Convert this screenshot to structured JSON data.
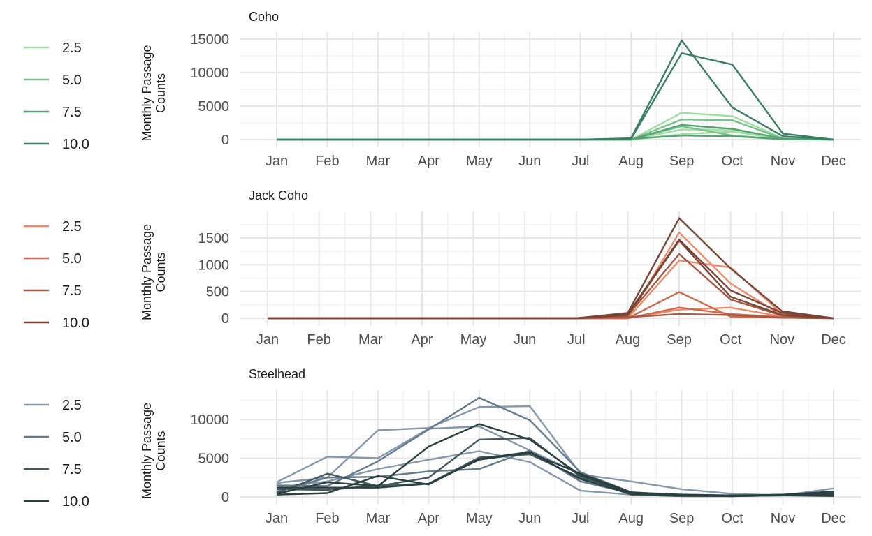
{
  "chart_data": [
    {
      "type": "line",
      "title": "Coho",
      "ylabel": "Monthly Passage Counts",
      "xlabel": "",
      "categories": [
        "Jan",
        "Feb",
        "Mar",
        "Apr",
        "May",
        "Jun",
        "Jul",
        "Aug",
        "Sep",
        "Oct",
        "Nov",
        "Dec"
      ],
      "ylim": [
        0,
        15000
      ],
      "yticks": [
        0,
        5000,
        10000,
        15000
      ],
      "grid": true,
      "legend": {
        "placement": "left",
        "entries": [
          {
            "label": "2.5",
            "color": "#9ddf9f"
          },
          {
            "label": "5.0",
            "color": "#77c28a"
          },
          {
            "label": "7.5",
            "color": "#56a274"
          },
          {
            "label": "10.0",
            "color": "#3a7e63"
          }
        ]
      },
      "series": [
        {
          "color": "#9ddf9f",
          "values": [
            0,
            0,
            0,
            0,
            0,
            0,
            0,
            0,
            4000,
            3500,
            200,
            0
          ]
        },
        {
          "color": "#9ddf9f",
          "values": [
            0,
            0,
            0,
            0,
            0,
            0,
            0,
            0,
            1500,
            1500,
            100,
            0
          ]
        },
        {
          "color": "#9ddf9f",
          "values": [
            0,
            0,
            0,
            0,
            0,
            0,
            0,
            0,
            800,
            1200,
            100,
            0
          ]
        },
        {
          "color": "#77c28a",
          "values": [
            0,
            0,
            0,
            0,
            0,
            0,
            0,
            0,
            3000,
            2900,
            150,
            0
          ]
        },
        {
          "color": "#77c28a",
          "values": [
            0,
            0,
            0,
            0,
            0,
            0,
            0,
            0,
            2000,
            600,
            50,
            0
          ]
        },
        {
          "color": "#56a274",
          "values": [
            0,
            0,
            0,
            0,
            0,
            0,
            0,
            0,
            2200,
            1600,
            150,
            0
          ]
        },
        {
          "color": "#56a274",
          "values": [
            0,
            0,
            0,
            0,
            0,
            0,
            0,
            100,
            600,
            500,
            50,
            0
          ]
        },
        {
          "color": "#3a7e63",
          "values": [
            0,
            0,
            0,
            0,
            0,
            0,
            0,
            200,
            14800,
            4800,
            500,
            0
          ]
        },
        {
          "color": "#3a7e63",
          "values": [
            0,
            0,
            0,
            0,
            0,
            0,
            0,
            100,
            12900,
            11200,
            900,
            0
          ]
        }
      ]
    },
    {
      "type": "line",
      "title": "Jack Coho",
      "ylabel": "Monthly Passage Counts",
      "xlabel": "",
      "categories": [
        "Jan",
        "Feb",
        "Mar",
        "Apr",
        "May",
        "Jun",
        "Jul",
        "Aug",
        "Sep",
        "Oct",
        "Nov",
        "Dec"
      ],
      "ylim": [
        0,
        1900
      ],
      "yticks": [
        0,
        500,
        1000,
        1500
      ],
      "grid": true,
      "legend": {
        "placement": "left",
        "entries": [
          {
            "label": "2.5",
            "color": "#ee8c6c"
          },
          {
            "label": "5.0",
            "color": "#cc6b4f"
          },
          {
            "label": "7.5",
            "color": "#a65842"
          },
          {
            "label": "10.0",
            "color": "#7a4536"
          }
        ]
      },
      "series": [
        {
          "color": "#ee8c6c",
          "values": [
            0,
            0,
            0,
            0,
            0,
            0,
            0,
            0,
            1600,
            650,
            50,
            0
          ]
        },
        {
          "color": "#ee8c6c",
          "values": [
            0,
            0,
            0,
            0,
            0,
            0,
            0,
            0,
            1080,
            950,
            80,
            0
          ]
        },
        {
          "color": "#ee8c6c",
          "values": [
            0,
            0,
            0,
            0,
            0,
            0,
            0,
            0,
            160,
            200,
            30,
            0
          ]
        },
        {
          "color": "#cc6b4f",
          "values": [
            0,
            0,
            0,
            0,
            0,
            0,
            0,
            0,
            490,
            30,
            10,
            0
          ]
        },
        {
          "color": "#cc6b4f",
          "values": [
            0,
            0,
            0,
            0,
            0,
            0,
            0,
            0,
            200,
            80,
            20,
            0
          ]
        },
        {
          "color": "#a65842",
          "values": [
            0,
            0,
            0,
            0,
            0,
            0,
            0,
            50,
            1200,
            350,
            50,
            0
          ]
        },
        {
          "color": "#a65842",
          "values": [
            0,
            0,
            0,
            0,
            0,
            0,
            0,
            20,
            80,
            60,
            10,
            0
          ]
        },
        {
          "color": "#7a4536",
          "values": [
            0,
            0,
            0,
            0,
            0,
            0,
            0,
            100,
            1870,
            930,
            130,
            0
          ]
        },
        {
          "color": "#7a4536",
          "values": [
            0,
            0,
            0,
            0,
            0,
            0,
            0,
            80,
            1470,
            520,
            100,
            0
          ]
        },
        {
          "color": "#7a4536",
          "values": [
            0,
            0,
            0,
            0,
            0,
            0,
            0,
            60,
            1450,
            400,
            60,
            0
          ]
        }
      ]
    },
    {
      "type": "line",
      "title": "Steelhead",
      "ylabel": "Monthly Passage Counts",
      "xlabel": "",
      "categories": [
        "Jan",
        "Feb",
        "Mar",
        "Apr",
        "May",
        "Jun",
        "Jul",
        "Aug",
        "Sep",
        "Oct",
        "Nov",
        "Dec"
      ],
      "ylim": [
        0,
        13000
      ],
      "yticks": [
        0,
        5000,
        10000
      ],
      "grid": true,
      "legend": {
        "placement": "left",
        "entries": [
          {
            "label": "2.5",
            "color": "#8497ad"
          },
          {
            "label": "5.0",
            "color": "#637b8c"
          },
          {
            "label": "7.5",
            "color": "#44585d"
          },
          {
            "label": "10.0",
            "color": "#2a3f3f"
          }
        ]
      },
      "series": [
        {
          "color": "#8497ad",
          "values": [
            1900,
            5200,
            5000,
            8800,
            9100,
            6000,
            2900,
            2000,
            1000,
            400,
            200,
            1100
          ]
        },
        {
          "color": "#8497ad",
          "values": [
            1800,
            2500,
            8600,
            8900,
            11600,
            11700,
            3000,
            300,
            100,
            100,
            200,
            700
          ]
        },
        {
          "color": "#8497ad",
          "values": [
            1200,
            2000,
            3600,
            4800,
            5900,
            4500,
            800,
            300,
            200,
            100,
            200,
            300
          ]
        },
        {
          "color": "#637b8c",
          "values": [
            1500,
            1400,
            4600,
            8700,
            12800,
            9900,
            3200,
            600,
            300,
            200,
            200,
            400
          ]
        },
        {
          "color": "#637b8c",
          "values": [
            700,
            2500,
            2600,
            3300,
            3600,
            6000,
            2000,
            500,
            200,
            100,
            200,
            300
          ]
        },
        {
          "color": "#44585d",
          "values": [
            500,
            3000,
            1400,
            2500,
            7400,
            7600,
            2600,
            400,
            200,
            100,
            300,
            500
          ]
        },
        {
          "color": "#44585d",
          "values": [
            1000,
            900,
            1500,
            1700,
            5100,
            5500,
            2500,
            300,
            100,
            100,
            200,
            100
          ]
        },
        {
          "color": "#2a3f3f",
          "values": [
            400,
            1900,
            1400,
            6500,
            9400,
            7400,
            2800,
            500,
            300,
            200,
            300,
            700
          ]
        },
        {
          "color": "#2a3f3f",
          "values": [
            300,
            500,
            2700,
            1600,
            4900,
            5800,
            2300,
            400,
            200,
            100,
            300,
            400
          ]
        },
        {
          "color": "#2a3f3f",
          "values": [
            1200,
            1200,
            1200,
            1700,
            4800,
            5700,
            3000,
            600,
            200,
            200,
            200,
            200
          ]
        }
      ]
    }
  ]
}
